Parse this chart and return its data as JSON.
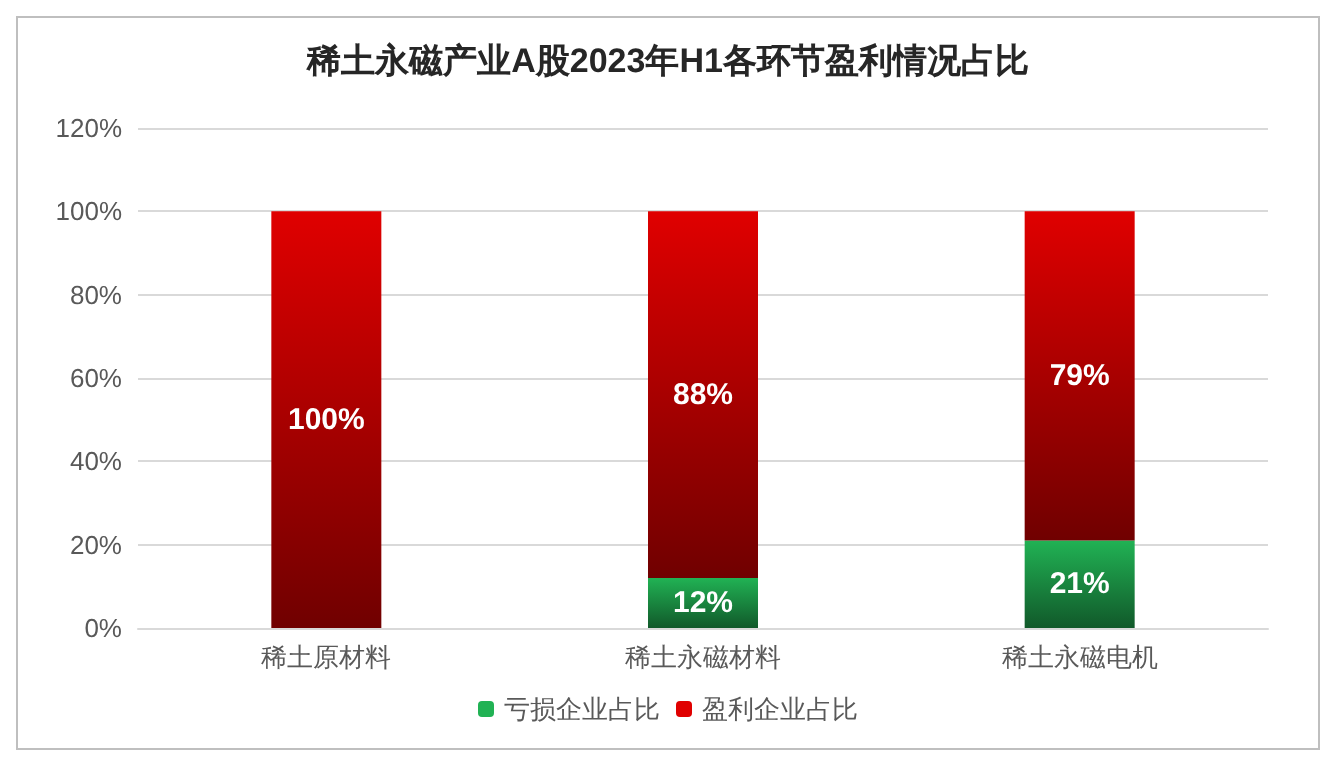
{
  "chart_data": {
    "type": "bar",
    "title": "稀土永磁产业A股2023年H1各环节盈利情况占比",
    "categories": [
      "稀土原材料",
      "稀土永磁材料",
      "稀土永磁电机"
    ],
    "stacked": true,
    "series": [
      {
        "name": "亏损企业占比",
        "color": "#21b254",
        "values": [
          0,
          12,
          21
        ],
        "value_labels": [
          null,
          "12%",
          "21%"
        ]
      },
      {
        "name": "盈利企业占比",
        "color": "#e00000",
        "values": [
          100,
          88,
          79
        ],
        "value_labels": [
          "100%",
          "88%",
          "79%"
        ]
      }
    ],
    "ylim": [
      0,
      120
    ],
    "yticks": [
      {
        "value": 0,
        "label": "0%"
      },
      {
        "value": 20,
        "label": "20%"
      },
      {
        "value": 40,
        "label": "40%"
      },
      {
        "value": 60,
        "label": "60%"
      },
      {
        "value": 80,
        "label": "80%"
      },
      {
        "value": 100,
        "label": "100%"
      },
      {
        "value": 120,
        "label": "120%"
      }
    ],
    "grid": "y",
    "legend": "bottom"
  }
}
